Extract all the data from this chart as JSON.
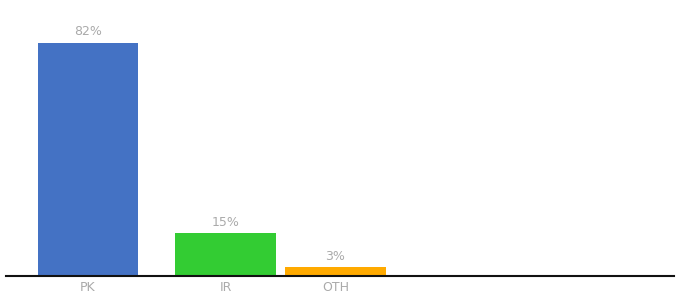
{
  "categories": [
    "PK",
    "IR",
    "OTH"
  ],
  "values": [
    82,
    15,
    3
  ],
  "labels": [
    "82%",
    "15%",
    "3%"
  ],
  "bar_colors": [
    "#4472c4",
    "#33cc33",
    "#ffaa00"
  ],
  "background_color": "#ffffff",
  "label_color": "#aaaaaa",
  "tick_color": "#aaaaaa",
  "axis_line_color": "#111111",
  "xlabel_fontsize": 9,
  "label_fontsize": 9,
  "ylim": [
    0,
    95
  ],
  "bar_width": 0.55,
  "x_positions": [
    0,
    0.75,
    1.35
  ],
  "xlim": [
    -0.45,
    3.2
  ]
}
